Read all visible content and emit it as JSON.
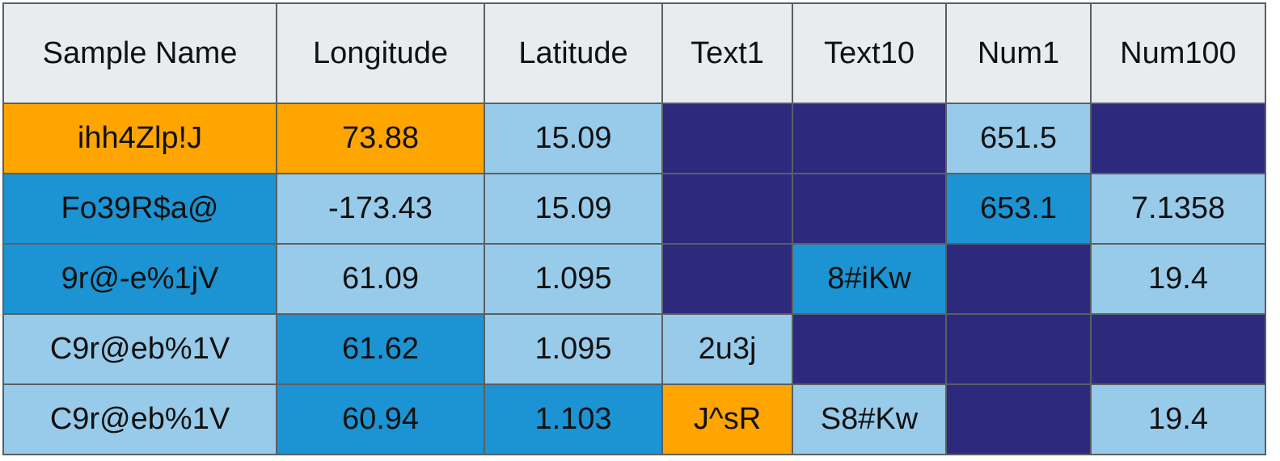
{
  "chart_data": {
    "type": "table",
    "columns": [
      "Sample Name",
      "Longitude",
      "Latitude",
      "Text1",
      "Text10",
      "Num1",
      "Num100"
    ],
    "rows": [
      [
        "ihh4Zlp!J",
        "73.88",
        "15.09",
        "",
        "",
        "651.5",
        ""
      ],
      [
        "Fo39R$a@",
        "-173.43",
        "15.09",
        "",
        "",
        "653.1",
        "7.1358"
      ],
      [
        "9r@-e%1jV",
        "61.09",
        "1.095",
        "",
        "8#iKw",
        "",
        "19.4"
      ],
      [
        "C9r@eb%1V",
        "61.62",
        "1.095",
        "2u3j",
        "",
        "",
        ""
      ],
      [
        "C9r@eb%1V",
        "60.94",
        "1.103",
        "J^sR",
        "S8#Kw",
        "",
        "19.4"
      ]
    ],
    "cell_colors": [
      [
        "orange",
        "orange",
        "light",
        "dark",
        "dark",
        "light",
        "dark"
      ],
      [
        "mid",
        "light",
        "light",
        "dark",
        "dark",
        "mid",
        "light"
      ],
      [
        "mid",
        "light",
        "light",
        "dark",
        "mid",
        "dark",
        "light"
      ],
      [
        "light",
        "mid",
        "light",
        "light",
        "dark",
        "dark",
        "dark"
      ],
      [
        "light",
        "mid",
        "mid",
        "orange",
        "light",
        "dark",
        "light"
      ]
    ],
    "palette": {
      "header": "#e8ecee",
      "orange": "#ffa500",
      "light": "#98cbea",
      "mid": "#1c93d2",
      "dark": "#2d2a7e",
      "border": "#5a5f63"
    }
  }
}
